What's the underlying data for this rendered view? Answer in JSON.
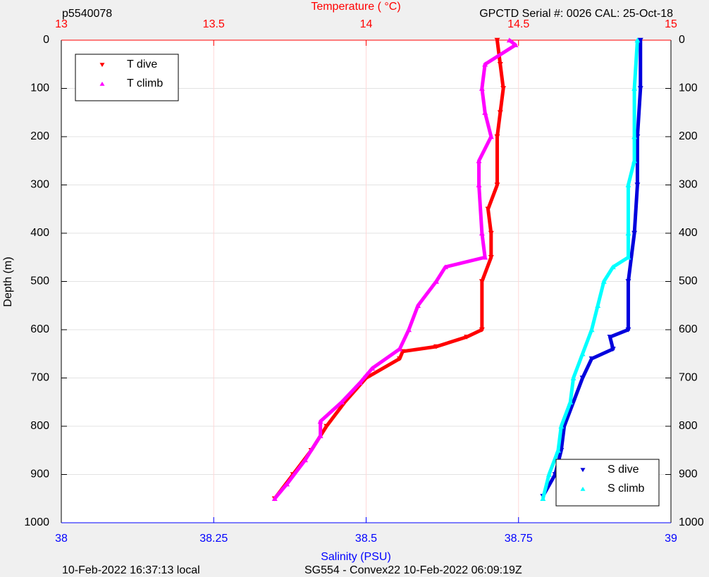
{
  "chart_data": {
    "type": "profile",
    "header_left": "p5540078",
    "header_right": "GPCTD Serial #: 0026 CAL: 25-Oct-18",
    "x2label": "Temperature (    °C)",
    "xlabel": "Salinity (PSU)",
    "ylabel": "Depth (m)",
    "footer_left": "10-Feb-2022 16:37:13 local",
    "footer_right": "SG554 - Convex22 10-Feb-2022 06:09:19Z",
    "x2lim": [
      13,
      15
    ],
    "x2ticks": [
      13,
      13.5,
      14,
      14.5,
      15
    ],
    "x2color": "#ff0000",
    "xlim": [
      38,
      39
    ],
    "xticks": [
      38,
      38.25,
      38.5,
      38.75,
      39
    ],
    "xcolor": "#0000ff",
    "ylim": [
      0,
      1000
    ],
    "yticks": [
      0,
      100,
      200,
      300,
      400,
      500,
      600,
      700,
      800,
      900,
      1000
    ],
    "y_reversed": true,
    "grid": true,
    "legend_loc_x2": "upper left",
    "legend_loc": "lower right",
    "series": [
      {
        "name": "T dive",
        "color": "#ff0000",
        "marker": "down",
        "axis": "x2",
        "depth": [
          0,
          50,
          100,
          150,
          200,
          300,
          350,
          400,
          450,
          500,
          600,
          615,
          635,
          645,
          660,
          700,
          750,
          800,
          850,
          900,
          950
        ],
        "values": [
          14.43,
          14.44,
          14.45,
          14.44,
          14.43,
          14.43,
          14.4,
          14.41,
          14.41,
          14.38,
          14.38,
          14.33,
          14.23,
          14.12,
          14.11,
          14.0,
          13.93,
          13.87,
          13.82,
          13.76,
          13.7
        ]
      },
      {
        "name": "T climb",
        "color": "#ff00ff",
        "marker": "up",
        "axis": "x2",
        "depth": [
          0,
          10,
          50,
          100,
          150,
          200,
          250,
          300,
          400,
          450,
          470,
          500,
          550,
          600,
          640,
          680,
          710,
          750,
          790,
          820,
          870,
          920,
          950
        ],
        "values": [
          14.47,
          14.49,
          14.39,
          14.38,
          14.39,
          14.41,
          14.37,
          14.37,
          14.38,
          14.39,
          14.26,
          14.23,
          14.17,
          14.14,
          14.11,
          14.02,
          13.98,
          13.92,
          13.85,
          13.85,
          13.8,
          13.74,
          13.7
        ]
      },
      {
        "name": "S dive",
        "color": "#0000dd",
        "marker": "down",
        "axis": "x",
        "depth": [
          0,
          100,
          200,
          300,
          400,
          500,
          600,
          615,
          640,
          660,
          700,
          750,
          800,
          850,
          900,
          945
        ],
        "values": [
          38.95,
          38.95,
          38.945,
          38.945,
          38.94,
          38.93,
          38.93,
          38.9,
          38.905,
          38.87,
          38.855,
          38.84,
          38.825,
          38.82,
          38.81,
          38.79
        ]
      },
      {
        "name": "S climb",
        "color": "#00ffff",
        "marker": "up",
        "axis": "x",
        "depth": [
          0,
          100,
          200,
          250,
          300,
          400,
          450,
          470,
          500,
          550,
          600,
          650,
          700,
          750,
          800,
          850,
          900,
          950
        ],
        "values": [
          38.945,
          38.94,
          38.94,
          38.94,
          38.93,
          38.93,
          38.93,
          38.905,
          38.89,
          38.88,
          38.87,
          38.855,
          38.84,
          38.835,
          38.82,
          38.815,
          38.8,
          38.79
        ]
      }
    ]
  }
}
